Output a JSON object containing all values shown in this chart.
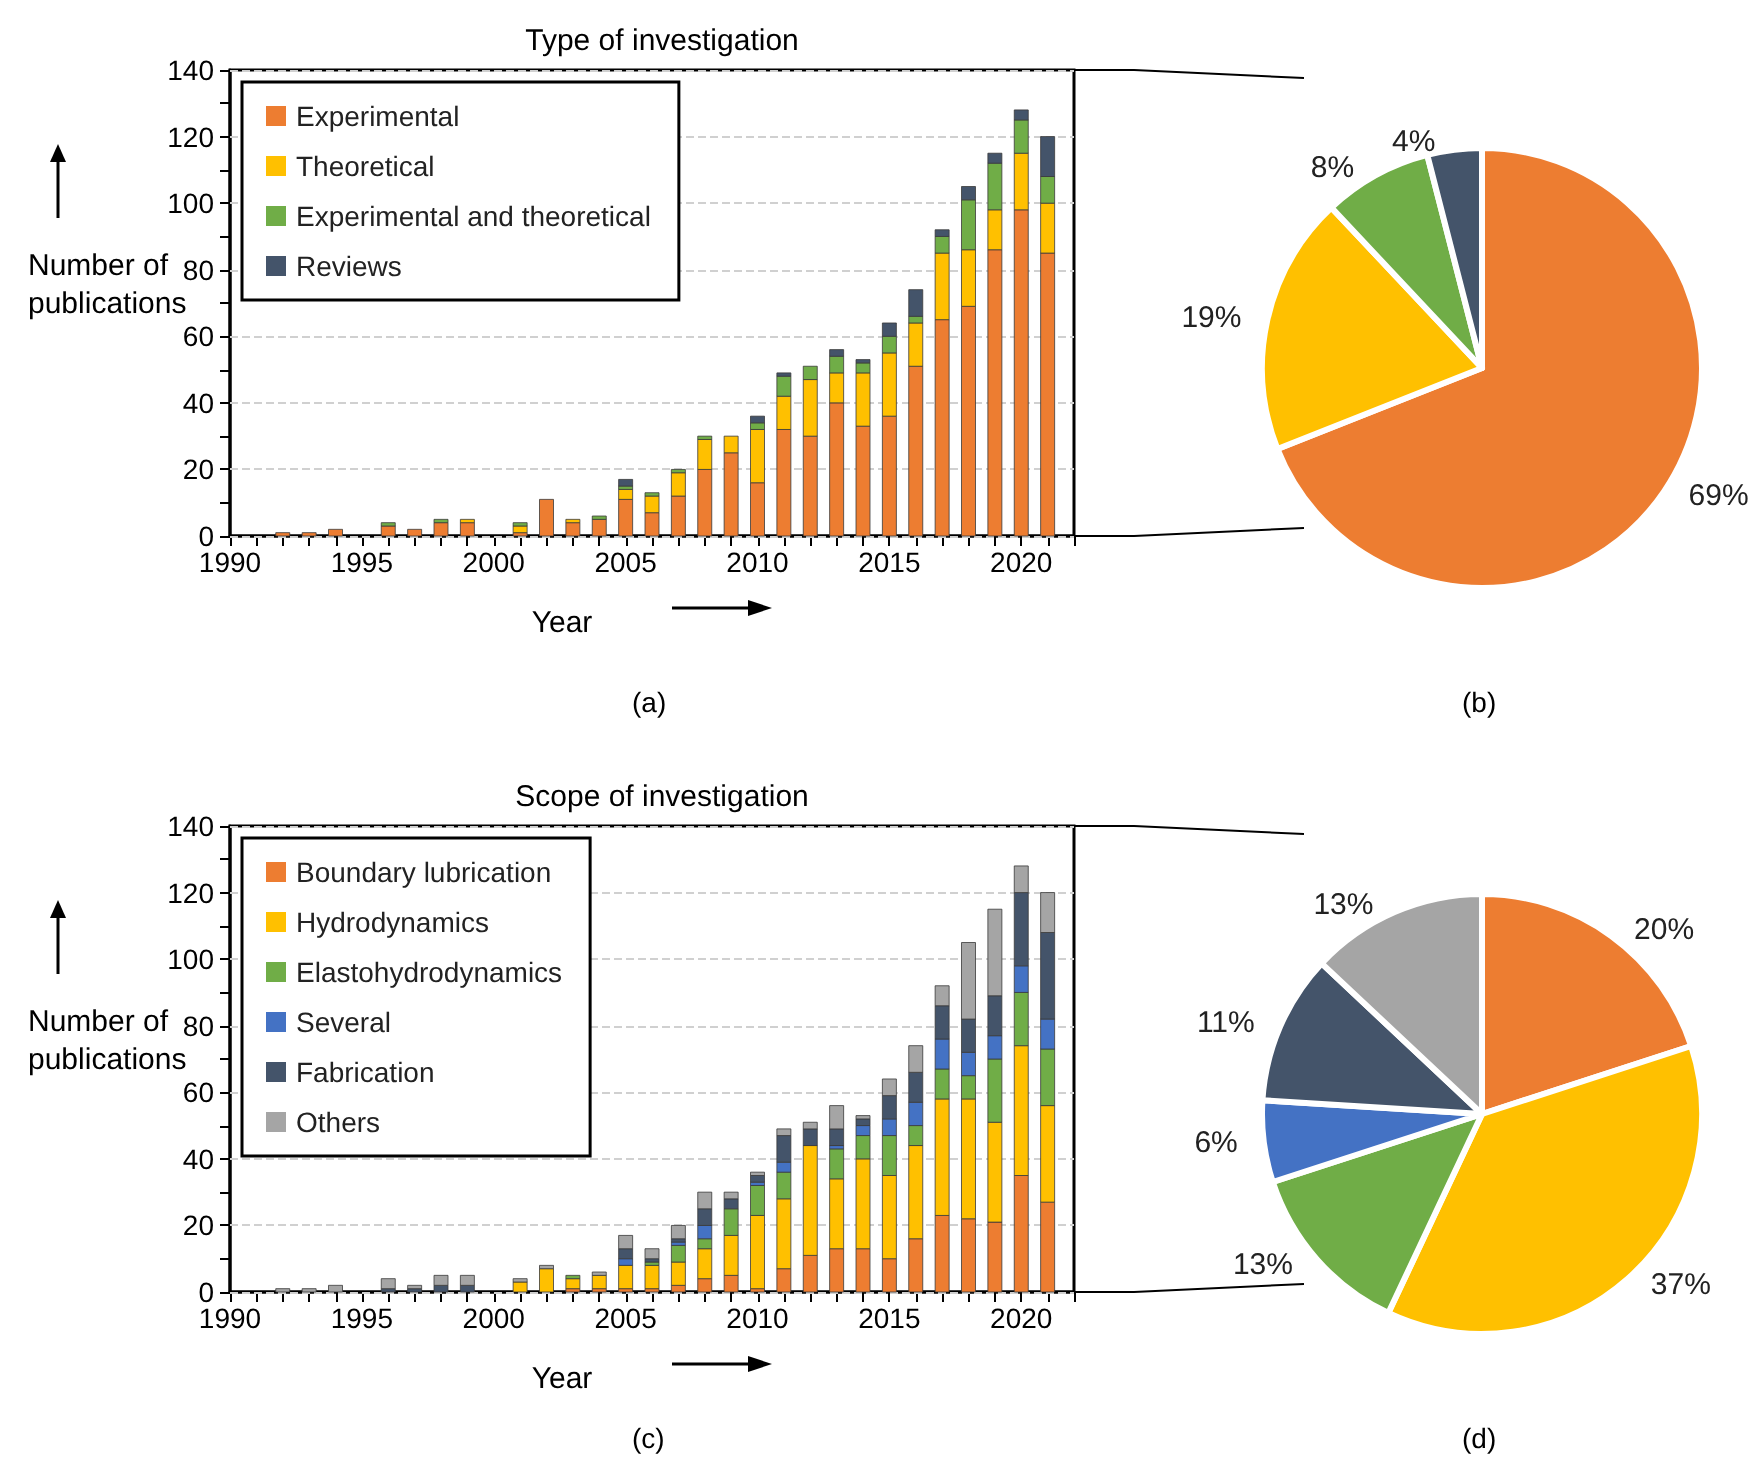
{
  "chart_data": [
    {
      "type": "bar",
      "title": "Type of investigation",
      "xlabel": "Year",
      "ylabel": "Number of publications",
      "stacked": true,
      "grid": "y",
      "legend": "top left",
      "annotations": [
        "(a)"
      ],
      "x": [
        1992,
        1993,
        1994,
        1995,
        1996,
        1997,
        1998,
        1999,
        2000,
        2001,
        2002,
        2003,
        2004,
        2005,
        2006,
        2007,
        2008,
        2009,
        2010,
        2011,
        2012,
        2013,
        2014,
        2015,
        2016,
        2017,
        2018,
        2019,
        2020,
        2021
      ],
      "xlim": [
        1990,
        2022
      ],
      "xticks": [
        1990,
        {
          "value": 1991,
          "label": null
        },
        {
          "value": 1992,
          "label": null
        },
        {
          "value": 1993,
          "label": null
        },
        {
          "value": 1994,
          "label": null
        },
        1995,
        {
          "value": 1996,
          "label": null
        },
        {
          "value": 1997,
          "label": null
        },
        {
          "value": 1998,
          "label": null
        },
        {
          "value": 1999,
          "label": null
        },
        2000,
        {
          "value": 2001,
          "label": null
        },
        {
          "value": 2002,
          "label": null
        },
        {
          "value": 2003,
          "label": null
        },
        {
          "value": 2004,
          "label": null
        },
        2005,
        {
          "value": 2006,
          "label": null
        },
        {
          "value": 2007,
          "label": null
        },
        {
          "value": 2008,
          "label": null
        },
        {
          "value": 2009,
          "label": null
        },
        2010,
        {
          "value": 2011,
          "label": null
        },
        {
          "value": 2012,
          "label": null
        },
        {
          "value": 2013,
          "label": null
        },
        {
          "value": 2014,
          "label": null
        },
        2015,
        {
          "value": 2016,
          "label": null
        },
        {
          "value": 2017,
          "label": null
        },
        {
          "value": 2018,
          "label": null
        },
        {
          "value": 2019,
          "label": null
        },
        2020,
        {
          "value": 2021,
          "label": null
        },
        {
          "value": 2022,
          "label": null
        }
      ],
      "ylim": [
        0,
        140
      ],
      "yticks": [
        0,
        {
          "value": 10,
          "label": null
        },
        20,
        {
          "value": 30,
          "label": null
        },
        40,
        {
          "value": 50,
          "label": null
        },
        60,
        {
          "value": 70,
          "label": null
        },
        80,
        {
          "value": 90,
          "label": null
        },
        100,
        {
          "value": 110,
          "label": null
        },
        120,
        {
          "value": 130,
          "label": null
        },
        140
      ],
      "series": [
        {
          "name": "Experimental",
          "color": "#ed7d31",
          "values": [
            1,
            1,
            2,
            0,
            3,
            2,
            4,
            4,
            0,
            1,
            11,
            4,
            5,
            11,
            7,
            12,
            20,
            25,
            16,
            32,
            30,
            40,
            33,
            36,
            51,
            65,
            69,
            86,
            98,
            85
          ]
        },
        {
          "name": "Theoretical",
          "color": "#ffc000",
          "values": [
            0,
            0,
            0,
            0,
            0,
            0,
            0,
            1,
            0,
            2,
            0,
            1,
            0,
            3,
            5,
            7,
            9,
            5,
            16,
            10,
            17,
            9,
            16,
            19,
            13,
            20,
            17,
            12,
            17,
            15
          ]
        },
        {
          "name": "Experimental and theoretical",
          "color": "#70ad47",
          "values": [
            0,
            0,
            0,
            0,
            1,
            0,
            1,
            0,
            0,
            1,
            0,
            0,
            1,
            1,
            1,
            1,
            1,
            0,
            2,
            6,
            4,
            5,
            3,
            5,
            2,
            5,
            15,
            14,
            10,
            8
          ]
        },
        {
          "name": "Reviews",
          "color": "#44546a",
          "values": [
            0,
            0,
            0,
            0,
            0,
            0,
            0,
            0,
            0,
            0,
            0,
            0,
            0,
            2,
            0,
            0,
            0,
            0,
            2,
            1,
            0,
            2,
            1,
            4,
            8,
            2,
            4,
            3,
            3,
            12
          ]
        }
      ]
    },
    {
      "type": "pie",
      "annotations": [
        "(b)"
      ],
      "categories": [
        null,
        null,
        null,
        null
      ],
      "values": [
        69,
        19,
        8,
        4
      ],
      "colors": [
        "#ed7d31",
        "#ffc000",
        "#70ad47",
        "#44546a"
      ],
      "value_labels": [
        "69%",
        "19%",
        "8%",
        "4%"
      ]
    },
    {
      "type": "bar",
      "title": "Scope of investigation",
      "xlabel": "Year",
      "ylabel": "Number of publications",
      "stacked": true,
      "grid": "y",
      "legend": "top left",
      "annotations": [
        "(c)"
      ],
      "x": [
        1992,
        1993,
        1994,
        1995,
        1996,
        1997,
        1998,
        1999,
        2000,
        2001,
        2002,
        2003,
        2004,
        2005,
        2006,
        2007,
        2008,
        2009,
        2010,
        2011,
        2012,
        2013,
        2014,
        2015,
        2016,
        2017,
        2018,
        2019,
        2020,
        2021
      ],
      "xlim": [
        1990,
        2022
      ],
      "xticks": [
        1990,
        {
          "value": 1991,
          "label": null
        },
        {
          "value": 1992,
          "label": null
        },
        {
          "value": 1993,
          "label": null
        },
        {
          "value": 1994,
          "label": null
        },
        1995,
        {
          "value": 1996,
          "label": null
        },
        {
          "value": 1997,
          "label": null
        },
        {
          "value": 1998,
          "label": null
        },
        {
          "value": 1999,
          "label": null
        },
        2000,
        {
          "value": 2001,
          "label": null
        },
        {
          "value": 2002,
          "label": null
        },
        {
          "value": 2003,
          "label": null
        },
        {
          "value": 2004,
          "label": null
        },
        2005,
        {
          "value": 2006,
          "label": null
        },
        {
          "value": 2007,
          "label": null
        },
        {
          "value": 2008,
          "label": null
        },
        {
          "value": 2009,
          "label": null
        },
        2010,
        {
          "value": 2011,
          "label": null
        },
        {
          "value": 2012,
          "label": null
        },
        {
          "value": 2013,
          "label": null
        },
        {
          "value": 2014,
          "label": null
        },
        2015,
        {
          "value": 2016,
          "label": null
        },
        {
          "value": 2017,
          "label": null
        },
        {
          "value": 2018,
          "label": null
        },
        {
          "value": 2019,
          "label": null
        },
        2020,
        {
          "value": 2021,
          "label": null
        },
        {
          "value": 2022,
          "label": null
        }
      ],
      "ylim": [
        0,
        140
      ],
      "yticks": [
        0,
        {
          "value": 10,
          "label": null
        },
        20,
        {
          "value": 30,
          "label": null
        },
        40,
        {
          "value": 50,
          "label": null
        },
        60,
        {
          "value": 70,
          "label": null
        },
        80,
        {
          "value": 90,
          "label": null
        },
        100,
        {
          "value": 110,
          "label": null
        },
        120,
        {
          "value": 130,
          "label": null
        },
        140
      ],
      "series": [
        {
          "name": "Boundary lubrication",
          "color": "#ed7d31",
          "values": [
            0,
            0,
            0,
            0,
            0,
            0,
            0,
            0,
            0,
            0,
            0,
            1,
            1,
            1,
            1,
            2,
            4,
            5,
            1,
            7,
            11,
            13,
            13,
            10,
            16,
            23,
            22,
            21,
            35,
            27
          ]
        },
        {
          "name": "Hydrodynamics",
          "color": "#ffc000",
          "values": [
            0,
            0,
            0,
            0,
            0,
            0,
            0,
            0,
            0,
            3,
            7,
            3,
            4,
            7,
            7,
            7,
            9,
            12,
            22,
            21,
            33,
            21,
            27,
            25,
            28,
            35,
            36,
            30,
            39,
            29
          ]
        },
        {
          "name": "Elastohydrodynamics",
          "color": "#70ad47",
          "values": [
            0,
            0,
            0,
            0,
            0,
            0,
            0,
            0,
            0,
            0,
            0,
            1,
            0,
            0,
            1,
            5,
            3,
            8,
            9,
            8,
            0,
            9,
            7,
            12,
            6,
            9,
            7,
            19,
            16,
            17
          ]
        },
        {
          "name": "Several",
          "color": "#4472c4",
          "values": [
            0,
            0,
            0,
            0,
            0,
            0,
            0,
            0,
            0,
            0,
            0,
            0,
            0,
            2,
            0,
            1,
            4,
            0,
            1,
            3,
            0,
            1,
            3,
            5,
            7,
            9,
            7,
            7,
            8,
            9
          ]
        },
        {
          "name": "Fabrication",
          "color": "#44546a",
          "values": [
            0,
            0,
            0,
            0,
            1,
            1,
            2,
            2,
            0,
            0,
            0,
            0,
            0,
            3,
            1,
            1,
            5,
            3,
            2,
            8,
            5,
            5,
            2,
            7,
            9,
            10,
            10,
            12,
            22,
            26
          ]
        },
        {
          "name": "Others",
          "color": "#a5a5a5",
          "values": [
            1,
            1,
            2,
            0,
            3,
            1,
            3,
            3,
            0,
            1,
            1,
            0,
            1,
            4,
            3,
            4,
            5,
            2,
            1,
            2,
            2,
            7,
            1,
            5,
            8,
            6,
            23,
            26,
            8,
            12
          ]
        }
      ]
    },
    {
      "type": "pie",
      "annotations": [
        "(d)"
      ],
      "categories": [
        null,
        null,
        null,
        null,
        null,
        null
      ],
      "values": [
        20,
        37,
        13,
        6,
        11,
        13
      ],
      "colors": [
        "#ed7d31",
        "#ffc000",
        "#70ad47",
        "#4472c4",
        "#44546a",
        "#a5a5a5"
      ],
      "value_labels": [
        "20%",
        "37%",
        "13%",
        "6%",
        "11%",
        "13%"
      ]
    }
  ]
}
